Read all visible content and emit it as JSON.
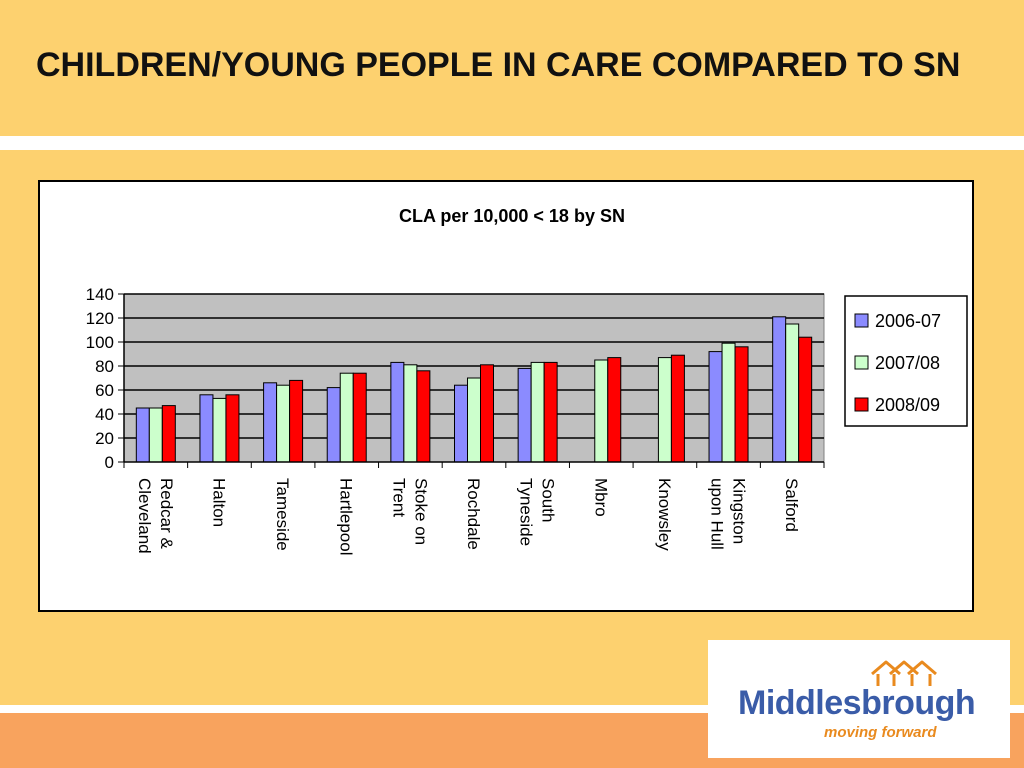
{
  "slide": {
    "title": "CHILDREN/YOUNG PEOPLE IN CARE COMPARED TO SN"
  },
  "logo": {
    "wordmark": "Middlesbrough",
    "tagline": "moving forward",
    "colors": {
      "wordmark": "#3a5ca8",
      "tagline": "#e98a1e",
      "mark": "#e98a1e"
    },
    "icon": "houses-logo-icon"
  },
  "colors": {
    "background": "#fdd16f",
    "band_bottom": "#f8a35e",
    "plot_area": "#c0c0c0",
    "series": [
      "#8b8bff",
      "#ccffcc",
      "#ff0000"
    ]
  },
  "chart_data": {
    "type": "bar",
    "title": "CLA per 10,000 < 18 by SN",
    "xlabel": "",
    "ylabel": "",
    "ylim": [
      0,
      140
    ],
    "yticks": [
      "0",
      "20",
      "40",
      "60",
      "80",
      "100",
      "120",
      "140"
    ],
    "grid": true,
    "legend_position": "right",
    "categories": [
      [
        "Redcar &",
        "Cleveland"
      ],
      [
        "Halton"
      ],
      [
        "Tameside"
      ],
      [
        "Hartlepool"
      ],
      [
        "Stoke on",
        "Trent"
      ],
      [
        "Rochdale"
      ],
      [
        "South",
        "Tyneside"
      ],
      [
        "Mbro"
      ],
      [
        "Knowsley"
      ],
      [
        "Kingston",
        "upon Hull"
      ],
      [
        "Salford"
      ]
    ],
    "series": [
      {
        "name": "2006-07",
        "values": [
          45,
          56,
          66,
          62,
          83,
          64,
          78,
          null,
          null,
          92,
          121
        ]
      },
      {
        "name": "2007/08",
        "values": [
          45,
          53,
          64,
          74,
          81,
          70,
          83,
          85,
          87,
          99,
          115
        ]
      },
      {
        "name": "2008/09",
        "values": [
          47,
          56,
          68,
          74,
          76,
          81,
          83,
          87,
          89,
          96,
          104
        ]
      }
    ]
  }
}
